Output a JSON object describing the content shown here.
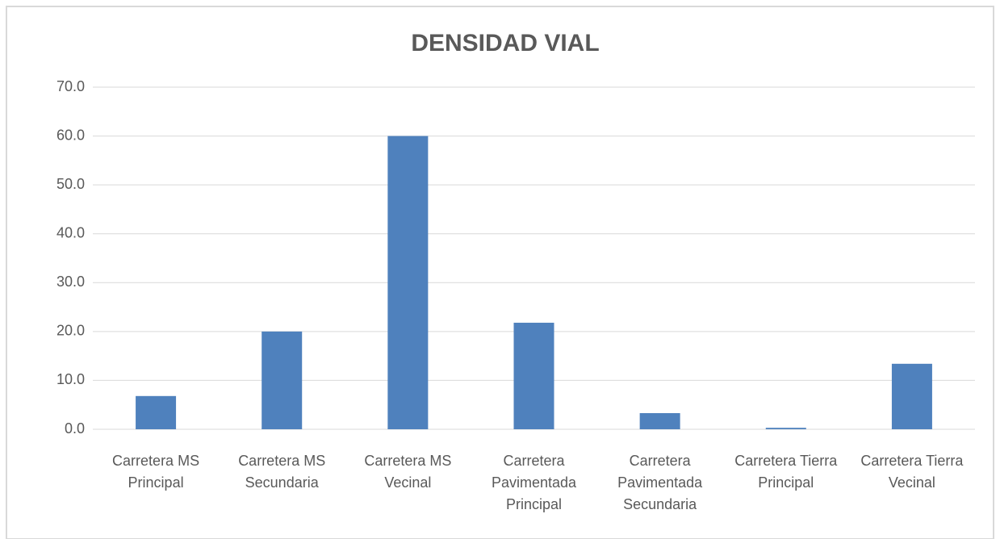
{
  "chart_data": {
    "type": "bar",
    "title": "DENSIDAD VIAL",
    "categories": [
      "Carretera MS Principal",
      "Carretera MS Secundaria",
      "Carretera MS Vecinal",
      "Carretera Pavimentada Principal",
      "Carretera Pavimentada Secundaria",
      "Carretera Tierra Principal",
      "Carretera Tierra Vecinal"
    ],
    "values": [
      6.8,
      20.0,
      60.0,
      21.8,
      3.3,
      0.3,
      13.4
    ],
    "color": "#4f81bd",
    "ylim": [
      0,
      70
    ],
    "yticks": [
      {
        "value": 0,
        "label": "0.0"
      },
      {
        "value": 10,
        "label": "10.0"
      },
      {
        "value": 20,
        "label": "20.0"
      },
      {
        "value": 30,
        "label": "30.0"
      },
      {
        "value": 40,
        "label": "40.0"
      },
      {
        "value": 50,
        "label": "50.0"
      },
      {
        "value": 60,
        "label": "60.0"
      },
      {
        "value": 70,
        "label": "70.0"
      }
    ],
    "grid": true
  }
}
